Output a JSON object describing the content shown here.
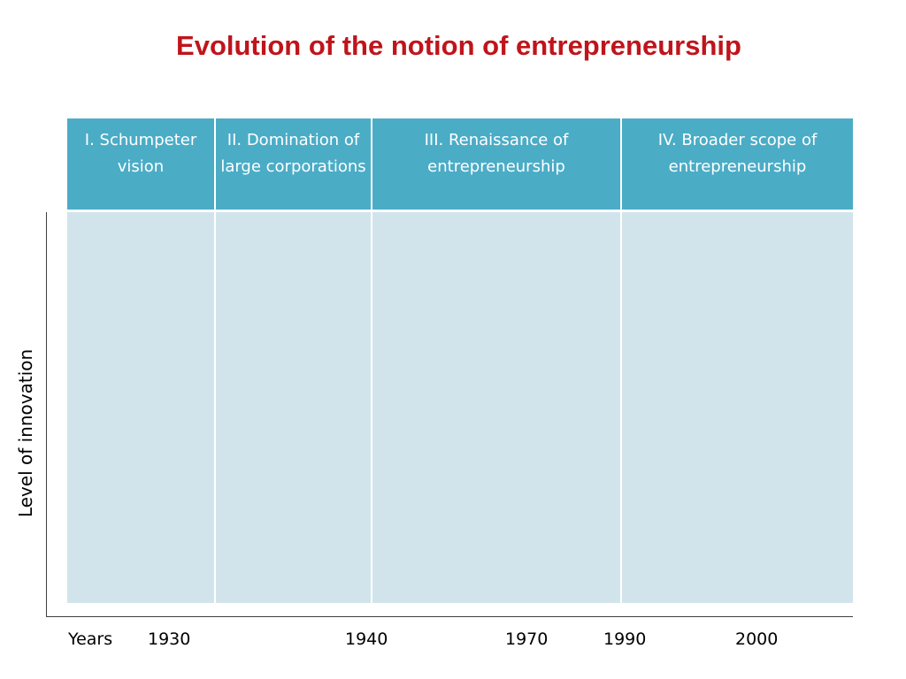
{
  "title": "Evolution of the notion of entrepreneurship",
  "columns": [
    {
      "label": "I. Schumpeter vision"
    },
    {
      "label": "II. Domination of large corporations"
    },
    {
      "label": "III. Renaissance of entrepreneurship"
    },
    {
      "label": "IV. Broader scope of entrepreneurship"
    }
  ],
  "y_axis_label": "Level of innovation",
  "x_axis": {
    "label": "Years",
    "ticks": [
      "1930",
      "1940",
      "1970",
      "1990",
      "2000"
    ]
  },
  "colors": {
    "title": "#c0141b",
    "header_fill": "#4bacc6",
    "body_fill": "#d2e4eb"
  }
}
